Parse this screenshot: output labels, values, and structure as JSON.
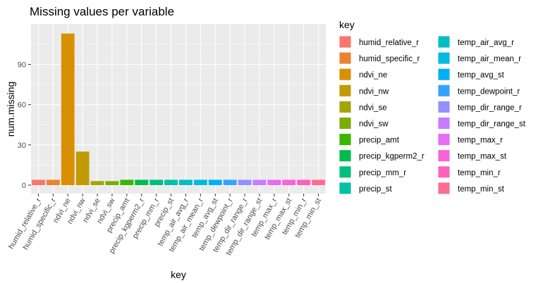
{
  "chart_data": {
    "type": "bar",
    "title": "Missing values per variable",
    "xlabel": "key",
    "ylabel": "num.missing",
    "ylim": [
      0,
      117
    ],
    "yticks": [
      0,
      30,
      60,
      90
    ],
    "grid": true,
    "legend": {
      "title": "key",
      "placement": "right",
      "columns": 2
    },
    "categories": [
      "humid_relative_r",
      "humid_specific_r",
      "ndvi_ne",
      "ndvi_nw",
      "ndvi_se",
      "ndvi_sw",
      "precip_amt",
      "precip_kgperm2_r",
      "precip_mm_r",
      "precip_st",
      "temp_air_avg_r",
      "temp_air_mean_r",
      "temp_avg_st",
      "temp_dewpoint_r",
      "temp_dir_range_r",
      "temp_dir_range_st",
      "temp_max_r",
      "temp_max_st",
      "temp_min_r",
      "temp_min_st"
    ],
    "values": [
      4,
      4,
      113,
      25,
      3,
      3,
      4,
      4,
      4,
      4,
      4,
      4,
      4,
      4,
      4,
      4,
      4,
      4,
      4,
      4
    ],
    "colors": [
      "#F8766D",
      "#EA8331",
      "#D89000",
      "#C09B00",
      "#A3A500",
      "#7CAE00",
      "#39B600",
      "#00BB4E",
      "#00BF7D",
      "#00C1A3",
      "#00BFC4",
      "#00BAE0",
      "#00B0F6",
      "#35A2FF",
      "#9590FF",
      "#C77CFF",
      "#E76BF3",
      "#FA62DB",
      "#FF62BC",
      "#FF6C91"
    ]
  }
}
